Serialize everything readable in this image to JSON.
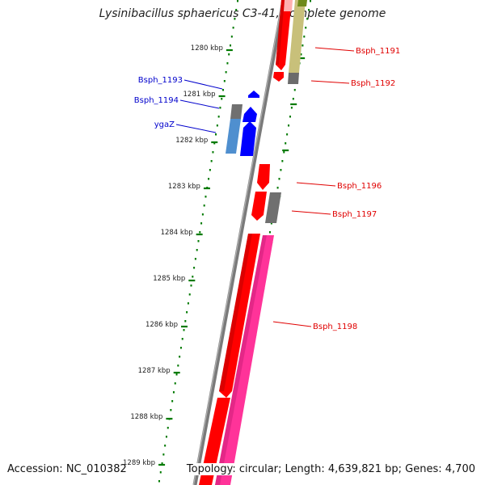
{
  "title": "Lysinibacillus sphaericus C3-41, complete genome",
  "footer": {
    "accession": "Accession: NC_010382",
    "summary": "Topology: circular; Length: 4,639,821 bp; Genes: 4,700"
  },
  "colors": {
    "forward": "#ff0000",
    "reverse": "#0000ff",
    "backbone": "#808080",
    "ticks": "#007a00",
    "pink": "#ff3399",
    "olive": "#c8c07a",
    "steel": "#4f8fcf",
    "gray": "#707070"
  },
  "ticks": [
    "1280 kbp",
    "1281 kbp",
    "1282 kbp",
    "1283 kbp",
    "1284 kbp",
    "1285 kbp",
    "1286 kbp",
    "1287 kbp",
    "1288 kbp",
    "1289 kbp"
  ],
  "genes": [
    {
      "label": "Bsph_1191",
      "strand": "forward"
    },
    {
      "label": "Bsph_1192",
      "strand": "forward"
    },
    {
      "label": "Bsph_1193",
      "strand": "reverse"
    },
    {
      "label": "Bsph_1194",
      "strand": "reverse"
    },
    {
      "label": "ygaZ",
      "strand": "reverse"
    },
    {
      "label": "Bsph_1196",
      "strand": "forward"
    },
    {
      "label": "Bsph_1197",
      "strand": "forward"
    },
    {
      "label": "Bsph_1198",
      "strand": "forward"
    }
  ]
}
